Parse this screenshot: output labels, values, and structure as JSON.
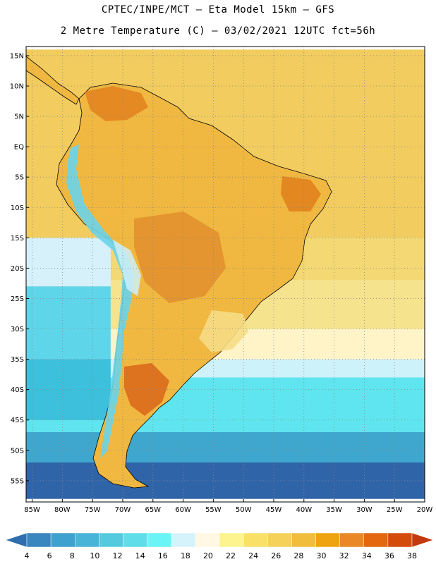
{
  "title": {
    "line1": "CPTEC/INPE/MCT –  Eta Model 15km – GFS",
    "line2": "2 Metre Temperature (C) – 03/02/2021 12UTC fct=56h"
  },
  "map": {
    "lat_labels": [
      "15N",
      "10N",
      "5N",
      "EQ",
      "5S",
      "10S",
      "15S",
      "20S",
      "25S",
      "30S",
      "35S",
      "40S",
      "45S",
      "50S",
      "55S"
    ],
    "lon_labels": [
      "85W",
      "80W",
      "75W",
      "70W",
      "65W",
      "60W",
      "55W",
      "50W",
      "45W",
      "40W",
      "35W",
      "30W",
      "25W",
      "20W"
    ],
    "ocean_bands": [
      {
        "from_lat": 16,
        "to_lat": -15,
        "color": "#f2cc5f"
      },
      {
        "from_lat": -15,
        "to_lat": -22,
        "color": "#f3d874"
      },
      {
        "from_lat": -22,
        "to_lat": -30,
        "color": "#f5e38e"
      },
      {
        "from_lat": -30,
        "to_lat": -35,
        "color": "#fff4c8"
      },
      {
        "from_lat": -35,
        "to_lat": -38,
        "color": "#cdf2fa"
      },
      {
        "from_lat": -38,
        "to_lat": -47,
        "color": "#5fe5ef"
      },
      {
        "from_lat": -47,
        "to_lat": -52,
        "color": "#3fa7cd"
      },
      {
        "from_lat": -52,
        "to_lat": -58,
        "color": "#2f64a8"
      }
    ],
    "pacific_bands": [
      {
        "from_lat": -15,
        "to_lat": -23,
        "color": "#d6f1fa"
      },
      {
        "from_lat": -23,
        "to_lat": -35,
        "color": "#5fd5ea"
      },
      {
        "from_lat": -35,
        "to_lat": -45,
        "color": "#3cc0dc"
      }
    ]
  },
  "colorbar": {
    "labels": [
      "4",
      "6",
      "8",
      "10",
      "12",
      "14",
      "16",
      "18",
      "20",
      "22",
      "24",
      "26",
      "28",
      "30",
      "32",
      "34",
      "36",
      "38"
    ],
    "colors": [
      "#2f6eaf",
      "#3a86bf",
      "#3fa1cd",
      "#48b5d8",
      "#55cadf",
      "#5fdde9",
      "#6af4f6",
      "#d5f3fa",
      "#fff8e4",
      "#fdf38f",
      "#f9e168",
      "#f5d159",
      "#f0bd3d",
      "#f0a310",
      "#ea8828",
      "#e3680f",
      "#d44c0c",
      "#c33a10"
    ]
  }
}
